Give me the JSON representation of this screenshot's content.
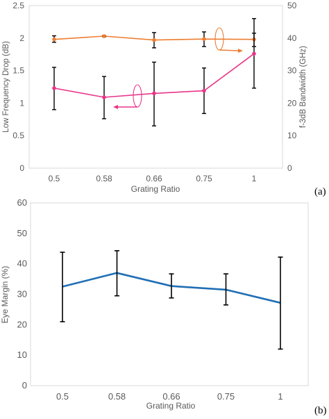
{
  "panel_labels": [
    "(a)",
    "(b)"
  ],
  "chart_data": [
    {
      "type": "line",
      "categories": [
        "0.5",
        "0.58",
        "0.66",
        "0.75",
        "1"
      ],
      "xlabel": "Grating Ratio",
      "ylabel": "Low Frequency Drop (dB)",
      "y2label": "f-3dB Bandwidth (GHz)",
      "ylim": [
        0,
        2.5
      ],
      "yticks": [
        "0",
        "0.5",
        "1",
        "1.5",
        "2",
        "2.5"
      ],
      "y2lim": [
        0,
        50
      ],
      "y2ticks": [
        "0",
        "10",
        "20",
        "30",
        "40",
        "50"
      ],
      "grid": false,
      "series": [
        {
          "axis": "right",
          "color": "#ED7D31",
          "values": [
            39.6,
            40.6,
            39.4,
            39.7,
            39.6
          ],
          "err_low": [
            38.7,
            40.4,
            37.0,
            37.4,
            37.4
          ],
          "err_high": [
            40.7,
            40.7,
            41.7,
            41.9,
            41.5
          ]
        },
        {
          "axis": "left",
          "color": "#E8358A",
          "values": [
            1.23,
            1.09,
            1.15,
            1.19,
            1.76
          ],
          "err_low": [
            0.9,
            0.76,
            0.65,
            0.84,
            1.23
          ],
          "err_high": [
            1.55,
            1.41,
            1.63,
            1.54,
            2.3
          ]
        }
      ],
      "annotations": [
        {
          "type": "axis-indicator-arrow",
          "series": 0,
          "points_to": "right-axis",
          "color": "#ED7D31"
        },
        {
          "type": "axis-indicator-arrow",
          "series": 1,
          "points_to": "left-axis",
          "color": "#E8358A"
        }
      ]
    },
    {
      "type": "line",
      "categories": [
        "0.5",
        "0.58",
        "0.66",
        "0.75",
        "1"
      ],
      "xlabel": "Grating Ratio",
      "ylabel": "Eye Margin (%)",
      "ylim": [
        0,
        60
      ],
      "yticks": [
        "0",
        "10",
        "20",
        "30",
        "40",
        "50",
        "60"
      ],
      "grid": false,
      "series": [
        {
          "color": "#1F6FB5",
          "values": [
            32.5,
            37.0,
            32.7,
            31.5,
            27.2
          ],
          "err_low": [
            21.0,
            29.5,
            28.8,
            26.5,
            12.0
          ],
          "err_high": [
            43.8,
            44.3,
            36.7,
            36.7,
            42.2
          ]
        }
      ]
    }
  ]
}
